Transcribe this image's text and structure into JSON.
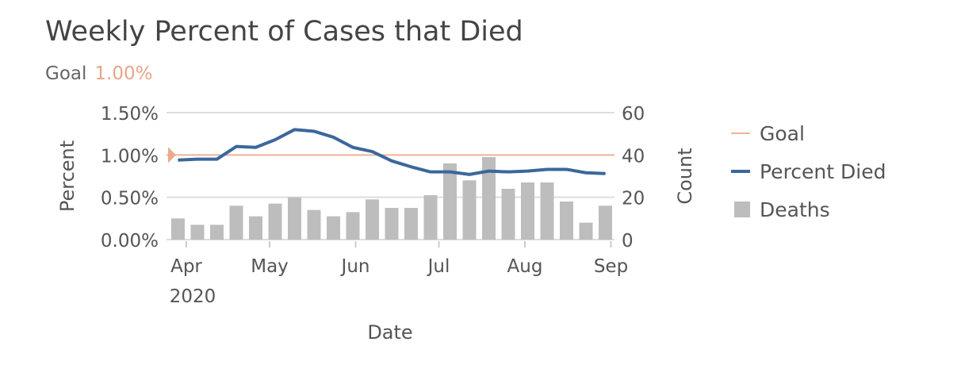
{
  "chart_data": {
    "type": "bar+line",
    "title": "Weekly Percent of Cases that Died",
    "goal_label": "Goal",
    "goal_value": "1.00%",
    "goal": 1.0,
    "xlabel": "Date",
    "ylabel_left": "Percent",
    "ylabel_right": "Count",
    "x_ticks": [
      {
        "date": "2020-04-01",
        "label": "Apr",
        "sub": "2020"
      },
      {
        "date": "2020-05-01",
        "label": "May"
      },
      {
        "date": "2020-06-01",
        "label": "Jun"
      },
      {
        "date": "2020-07-01",
        "label": "Jul"
      },
      {
        "date": "2020-08-01",
        "label": "Aug"
      },
      {
        "date": "2020-09-01",
        "label": "Sep"
      }
    ],
    "ylim_left": [
      0,
      1.5
    ],
    "yticks_left": [
      "0.00%",
      "0.50%",
      "1.00%",
      "1.50%"
    ],
    "ylim_right": [
      0,
      60
    ],
    "yticks_right": [
      "0",
      "20",
      "40",
      "60"
    ],
    "grid": true,
    "legend_position": "right",
    "x": [
      "2020-03-29",
      "2020-04-05",
      "2020-04-12",
      "2020-04-19",
      "2020-04-26",
      "2020-05-03",
      "2020-05-10",
      "2020-05-17",
      "2020-05-24",
      "2020-05-31",
      "2020-06-07",
      "2020-06-14",
      "2020-06-21",
      "2020-06-28",
      "2020-07-05",
      "2020-07-12",
      "2020-07-19",
      "2020-07-26",
      "2020-08-02",
      "2020-08-09",
      "2020-08-16",
      "2020-08-23",
      "2020-08-30"
    ],
    "series": [
      {
        "name": "Goal",
        "type": "line",
        "axis": "left",
        "color": "#eeb49c"
      },
      {
        "name": "Percent Died",
        "type": "line",
        "axis": "left",
        "color": "#3b679b",
        "values": [
          0.94,
          0.95,
          0.95,
          1.1,
          1.09,
          1.18,
          1.3,
          1.28,
          1.21,
          1.09,
          1.04,
          0.93,
          0.86,
          0.8,
          0.8,
          0.77,
          0.81,
          0.8,
          0.81,
          0.83,
          0.83,
          0.79,
          0.78
        ]
      },
      {
        "name": "Deaths",
        "type": "bar",
        "axis": "right",
        "color": "#bdbdbd",
        "values": [
          10,
          7,
          7,
          16,
          11,
          17,
          20,
          14,
          11,
          13,
          19,
          15,
          15,
          21,
          36,
          28,
          39,
          24,
          27,
          27,
          18,
          8,
          16
        ]
      }
    ]
  }
}
